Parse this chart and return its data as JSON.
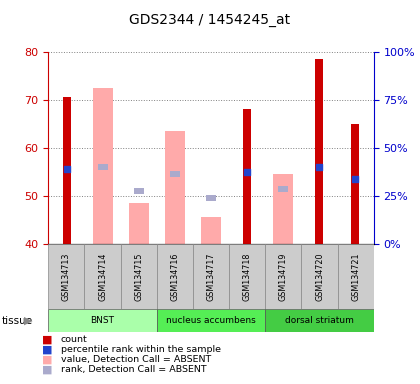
{
  "title": "GDS2344 / 1454245_at",
  "samples": [
    "GSM134713",
    "GSM134714",
    "GSM134715",
    "GSM134716",
    "GSM134717",
    "GSM134718",
    "GSM134719",
    "GSM134720",
    "GSM134721"
  ],
  "tissues": [
    {
      "label": "BNST",
      "start": 0,
      "end": 3,
      "color": "#aaffaa"
    },
    {
      "label": "nucleus accumbens",
      "start": 3,
      "end": 6,
      "color": "#55ee55"
    },
    {
      "label": "dorsal striatum",
      "start": 6,
      "end": 9,
      "color": "#44cc44"
    }
  ],
  "count_values": [
    70.5,
    null,
    null,
    null,
    null,
    68.0,
    null,
    78.5,
    65.0
  ],
  "rank_values": [
    55.5,
    null,
    null,
    null,
    null,
    55.0,
    null,
    56.0,
    53.5
  ],
  "absent_value_bars": [
    null,
    72.5,
    48.5,
    63.5,
    45.5,
    null,
    54.5,
    null,
    null
  ],
  "absent_rank_bars": [
    null,
    56.0,
    51.0,
    54.5,
    49.5,
    null,
    51.5,
    null,
    null
  ],
  "ylim_left": [
    40,
    80
  ],
  "ylim_right": [
    0,
    100
  ],
  "yticks_left": [
    40,
    50,
    60,
    70,
    80
  ],
  "yticks_right": [
    0,
    25,
    50,
    75,
    100
  ],
  "yticklabels_right": [
    "0%",
    "25%",
    "50%",
    "75%",
    "100%"
  ],
  "left_axis_color": "#cc0000",
  "right_axis_color": "#0000cc",
  "count_color": "#cc0000",
  "rank_color": "#2244cc",
  "absent_value_color": "#ffaaaa",
  "absent_rank_color": "#aaaacc",
  "bg_samples": "#cccccc",
  "tissue_label": "tissue",
  "legend_items": [
    {
      "color": "#cc0000",
      "label": "count"
    },
    {
      "color": "#2244cc",
      "label": "percentile rank within the sample"
    },
    {
      "color": "#ffaaaa",
      "label": "value, Detection Call = ABSENT"
    },
    {
      "color": "#aaaacc",
      "label": "rank, Detection Call = ABSENT"
    }
  ]
}
